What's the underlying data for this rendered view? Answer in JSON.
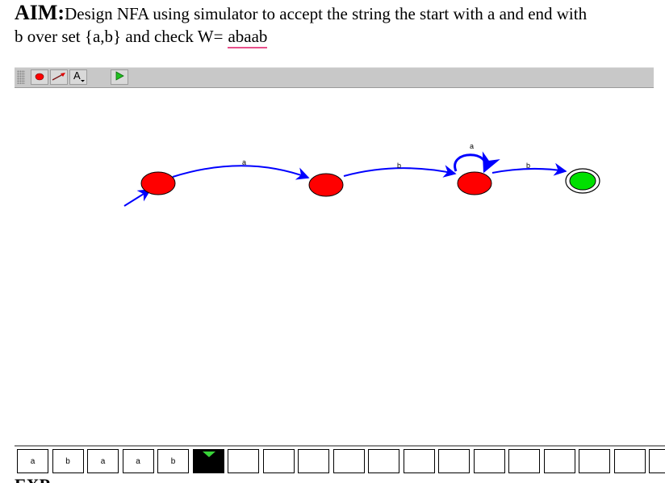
{
  "aim": {
    "label": "AIM:",
    "line1": "Design NFA using simulator to accept the string the start with a and end with",
    "line2": "b over set {a,b} and check W=",
    "w_value": "abaab"
  },
  "toolbar": {
    "buttons": [
      {
        "name": "state-tool-button",
        "icon": "red-dot-icon"
      },
      {
        "name": "transition-tool-button",
        "icon": "arrow-line-icon"
      },
      {
        "name": "text-tool-button",
        "icon": "letter-a-icon",
        "label": "A"
      },
      {
        "name": "run-button",
        "icon": "play-triangle-icon"
      }
    ]
  },
  "automaton": {
    "states": [
      {
        "id": "q0",
        "start": true,
        "final": false,
        "color": "#ff0000"
      },
      {
        "id": "q1",
        "start": false,
        "final": false,
        "color": "#ff0000"
      },
      {
        "id": "q2",
        "start": false,
        "final": false,
        "color": "#ff0000"
      },
      {
        "id": "q3",
        "start": false,
        "final": true,
        "color": "#00e000"
      }
    ],
    "transitions": [
      {
        "from": "q0",
        "to": "q1",
        "symbol": "a"
      },
      {
        "from": "q1",
        "to": "q2",
        "symbol": "b"
      },
      {
        "from": "q2",
        "to": "q2",
        "symbol": "a"
      },
      {
        "from": "q2",
        "to": "q3",
        "symbol": "b"
      }
    ],
    "edge_color": "#0000ff"
  },
  "tape": {
    "cells": [
      "a",
      "b",
      "a",
      "a",
      "b"
    ],
    "head_index": 5,
    "empty_cells": 13
  },
  "footer": {
    "text": "EXP"
  }
}
